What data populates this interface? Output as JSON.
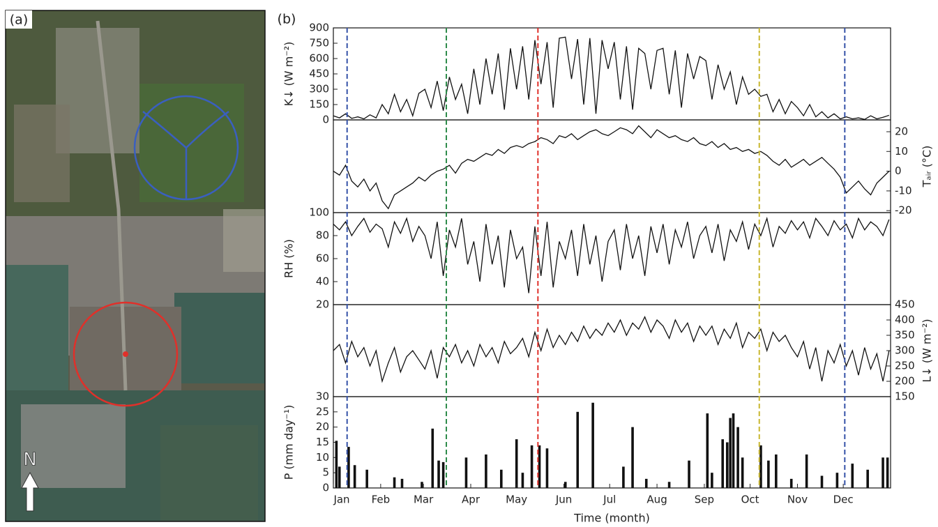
{
  "panel_a": {
    "label": "(a)",
    "north": "N"
  },
  "panel_b_label": "(b)",
  "reference_lines": [
    {
      "x": 9,
      "color": "#3552a8"
    },
    {
      "x": 74,
      "color": "#2e8b4a"
    },
    {
      "x": 134,
      "color": "#e0302a"
    },
    {
      "x": 279,
      "color": "#c9b830"
    },
    {
      "x": 335,
      "color": "#3552a8"
    }
  ],
  "chart_data": [
    {
      "type": "line",
      "ylabel": "K↓ (W m⁻²)",
      "side": "left",
      "color": "#111",
      "xlim": [
        0,
        365
      ],
      "ylim": [
        0,
        900
      ],
      "yticks": [
        0,
        150,
        300,
        450,
        600,
        750,
        900
      ],
      "x": [
        0,
        4,
        8,
        12,
        16,
        20,
        24,
        28,
        32,
        36,
        40,
        44,
        48,
        52,
        56,
        60,
        64,
        68,
        72,
        76,
        80,
        84,
        88,
        92,
        96,
        100,
        104,
        108,
        112,
        116,
        120,
        124,
        128,
        132,
        136,
        140,
        144,
        148,
        152,
        156,
        160,
        164,
        168,
        172,
        176,
        180,
        184,
        188,
        192,
        196,
        200,
        204,
        208,
        212,
        216,
        220,
        224,
        228,
        232,
        236,
        240,
        244,
        248,
        252,
        256,
        260,
        264,
        268,
        272,
        276,
        280,
        284,
        288,
        292,
        296,
        300,
        304,
        308,
        312,
        316,
        320,
        324,
        328,
        332,
        336,
        340,
        344,
        348,
        352,
        356,
        360,
        364
      ],
      "values": [
        40,
        20,
        60,
        15,
        30,
        10,
        50,
        20,
        150,
        60,
        250,
        80,
        200,
        40,
        260,
        300,
        120,
        380,
        90,
        420,
        200,
        350,
        60,
        500,
        150,
        600,
        250,
        650,
        100,
        700,
        300,
        720,
        200,
        780,
        350,
        760,
        120,
        800,
        810,
        400,
        790,
        150,
        800,
        60,
        780,
        500,
        760,
        200,
        720,
        100,
        700,
        650,
        300,
        680,
        700,
        250,
        680,
        120,
        650,
        400,
        620,
        580,
        200,
        540,
        300,
        470,
        150,
        420,
        250,
        300,
        230,
        250,
        80,
        200,
        60,
        180,
        120,
        40,
        150,
        30,
        80,
        20,
        60,
        10,
        30,
        10,
        20,
        5,
        40,
        10,
        25,
        45
      ]
    },
    {
      "type": "line",
      "ylabel": "Tₐᵢᵣ (°C)",
      "side": "right",
      "color": "#111",
      "xlim": [
        0,
        365
      ],
      "ylim": [
        -21,
        26
      ],
      "yticks": [
        -20,
        -10,
        0,
        10,
        20
      ],
      "x": [
        0,
        4,
        8,
        12,
        16,
        20,
        24,
        28,
        32,
        36,
        40,
        44,
        48,
        52,
        56,
        60,
        64,
        68,
        72,
        76,
        80,
        84,
        88,
        92,
        96,
        100,
        104,
        108,
        112,
        116,
        120,
        124,
        128,
        132,
        136,
        140,
        144,
        148,
        152,
        156,
        160,
        164,
        168,
        172,
        176,
        180,
        184,
        188,
        192,
        196,
        200,
        204,
        208,
        212,
        216,
        220,
        224,
        228,
        232,
        236,
        240,
        244,
        248,
        252,
        256,
        260,
        264,
        268,
        272,
        276,
        280,
        284,
        288,
        292,
        296,
        300,
        304,
        308,
        312,
        316,
        320,
        324,
        328,
        332,
        336,
        340,
        344,
        348,
        352,
        356,
        360,
        364
      ],
      "values": [
        0,
        -2,
        3,
        -5,
        -8,
        -4,
        -10,
        -6,
        -15,
        -19,
        -12,
        -10,
        -8,
        -6,
        -3,
        -5,
        -2,
        0,
        1,
        3,
        -1,
        4,
        6,
        5,
        7,
        9,
        8,
        11,
        9,
        12,
        13,
        12,
        14,
        15,
        17,
        16,
        14,
        18,
        17,
        19,
        16,
        18,
        20,
        21,
        19,
        18,
        20,
        22,
        21,
        19,
        23,
        20,
        17,
        21,
        19,
        17,
        18,
        16,
        15,
        17,
        14,
        13,
        15,
        12,
        14,
        11,
        12,
        10,
        11,
        9,
        10,
        8,
        5,
        3,
        6,
        2,
        4,
        6,
        3,
        5,
        7,
        4,
        1,
        -3,
        -11,
        -8,
        -5,
        -9,
        -12,
        -6,
        -3,
        0
      ]
    },
    {
      "type": "line",
      "ylabel": "RH (%)",
      "side": "left",
      "color": "#111",
      "xlim": [
        0,
        365
      ],
      "ylim": [
        20,
        100
      ],
      "yticks": [
        20,
        40,
        60,
        80,
        100
      ],
      "x": [
        0,
        4,
        8,
        12,
        16,
        20,
        24,
        28,
        32,
        36,
        40,
        44,
        48,
        52,
        56,
        60,
        64,
        68,
        72,
        76,
        80,
        84,
        88,
        92,
        96,
        100,
        104,
        108,
        112,
        116,
        120,
        124,
        128,
        132,
        136,
        140,
        144,
        148,
        152,
        156,
        160,
        164,
        168,
        172,
        176,
        180,
        184,
        188,
        192,
        196,
        200,
        204,
        208,
        212,
        216,
        220,
        224,
        228,
        232,
        236,
        240,
        244,
        248,
        252,
        256,
        260,
        264,
        268,
        272,
        276,
        280,
        284,
        288,
        292,
        296,
        300,
        304,
        308,
        312,
        316,
        320,
        324,
        328,
        332,
        336,
        340,
        344,
        348,
        352,
        356,
        360,
        364
      ],
      "values": [
        90,
        85,
        92,
        80,
        88,
        95,
        83,
        90,
        86,
        70,
        92,
        82,
        95,
        75,
        88,
        80,
        60,
        92,
        45,
        85,
        70,
        95,
        55,
        75,
        40,
        90,
        55,
        80,
        35,
        85,
        60,
        70,
        30,
        88,
        45,
        92,
        35,
        75,
        60,
        85,
        45,
        90,
        55,
        80,
        40,
        75,
        85,
        50,
        90,
        60,
        80,
        45,
        88,
        65,
        90,
        55,
        85,
        70,
        92,
        60,
        80,
        88,
        65,
        90,
        58,
        85,
        75,
        92,
        68,
        90,
        80,
        95,
        70,
        88,
        82,
        93,
        85,
        92,
        78,
        95,
        88,
        80,
        93,
        85,
        90,
        78,
        95,
        85,
        92,
        88,
        80,
        94
      ]
    },
    {
      "type": "line",
      "ylabel": "L↓ (W m⁻²)",
      "side": "right",
      "color": "#111",
      "xlim": [
        0,
        365
      ],
      "ylim": [
        150,
        450
      ],
      "yticks": [
        150,
        200,
        250,
        300,
        350,
        400,
        450
      ],
      "x": [
        0,
        4,
        8,
        12,
        16,
        20,
        24,
        28,
        32,
        36,
        40,
        44,
        48,
        52,
        56,
        60,
        64,
        68,
        72,
        76,
        80,
        84,
        88,
        92,
        96,
        100,
        104,
        108,
        112,
        116,
        120,
        124,
        128,
        132,
        136,
        140,
        144,
        148,
        152,
        156,
        160,
        164,
        168,
        172,
        176,
        180,
        184,
        188,
        192,
        196,
        200,
        204,
        208,
        212,
        216,
        220,
        224,
        228,
        232,
        236,
        240,
        244,
        248,
        252,
        256,
        260,
        264,
        268,
        272,
        276,
        280,
        284,
        288,
        292,
        296,
        300,
        304,
        308,
        312,
        316,
        320,
        324,
        328,
        332,
        336,
        340,
        344,
        348,
        352,
        356,
        360,
        364
      ],
      "values": [
        300,
        320,
        260,
        330,
        280,
        310,
        250,
        300,
        200,
        260,
        310,
        230,
        280,
        300,
        270,
        240,
        300,
        210,
        310,
        280,
        320,
        260,
        300,
        250,
        320,
        280,
        310,
        260,
        330,
        290,
        310,
        340,
        280,
        360,
        300,
        370,
        310,
        350,
        320,
        360,
        330,
        380,
        340,
        370,
        350,
        390,
        360,
        400,
        350,
        390,
        370,
        410,
        360,
        400,
        380,
        340,
        400,
        360,
        390,
        330,
        380,
        350,
        380,
        320,
        370,
        340,
        390,
        310,
        360,
        340,
        370,
        300,
        360,
        330,
        350,
        310,
        280,
        330,
        240,
        310,
        200,
        300,
        260,
        320,
        250,
        300,
        220,
        310,
        240,
        290,
        200,
        300
      ]
    },
    {
      "type": "bar",
      "ylabel": "P (mm day⁻¹)",
      "side": "left",
      "color": "#111",
      "xlabel": "Time (month)",
      "xlim": [
        0,
        365
      ],
      "ylim": [
        0,
        30
      ],
      "yticks": [
        0,
        5,
        10,
        15,
        20,
        25,
        30
      ],
      "xticks": [
        {
          "value": 0,
          "label": "Jan"
        },
        {
          "value": 31,
          "label": "Feb"
        },
        {
          "value": 59,
          "label": "Mar"
        },
        {
          "value": 90,
          "label": "Apr"
        },
        {
          "value": 120,
          "label": "May"
        },
        {
          "value": 151,
          "label": "Jun"
        },
        {
          "value": 181,
          "label": "Jul"
        },
        {
          "value": 212,
          "label": "Aug"
        },
        {
          "value": 243,
          "label": "Sep"
        },
        {
          "value": 273,
          "label": "Oct"
        },
        {
          "value": 304,
          "label": "Nov"
        },
        {
          "value": 334,
          "label": "Dec"
        }
      ],
      "x": [
        2,
        4,
        10,
        14,
        22,
        40,
        45,
        58,
        65,
        69,
        72,
        87,
        100,
        110,
        120,
        124,
        130,
        135,
        140,
        152,
        160,
        170,
        190,
        196,
        205,
        220,
        233,
        245,
        248,
        255,
        258,
        260,
        262,
        265,
        268,
        280,
        285,
        290,
        300,
        310,
        320,
        330,
        340,
        350,
        360,
        363
      ],
      "values": [
        15.5,
        7,
        13.5,
        7.5,
        6,
        3.5,
        3,
        2,
        19.5,
        9,
        8.5,
        10,
        11,
        6,
        16,
        5,
        14,
        14,
        13,
        2,
        25,
        28,
        7,
        20,
        3,
        2,
        9,
        24.5,
        5,
        16,
        15,
        23,
        24.5,
        20,
        10,
        14,
        9,
        11,
        3,
        11,
        4,
        5,
        8,
        6,
        10,
        10
      ]
    }
  ]
}
